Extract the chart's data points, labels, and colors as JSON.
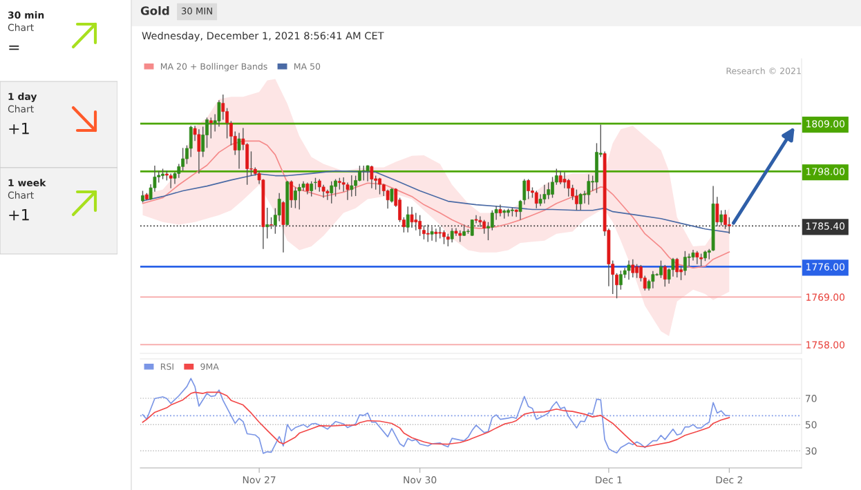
{
  "chart_data": [
    {
      "type": "candlestick",
      "title": "Gold",
      "subtitle": "Wednesday, December 1, 2021 8:56:41 AM CET",
      "annotations": [
        "30 MIN",
        "Research © 2021"
      ],
      "categories": [
        null,
        null,
        null,
        null,
        null,
        null,
        null,
        null,
        null,
        null,
        null,
        null,
        null,
        null,
        null,
        null,
        null,
        null,
        null,
        null,
        null,
        null,
        null,
        null,
        null,
        null,
        null,
        null,
        null,
        null,
        null,
        null,
        null,
        null,
        null,
        null,
        null,
        null,
        null,
        null,
        null,
        null,
        null,
        null,
        null,
        null,
        null,
        null,
        null,
        null,
        null,
        null,
        null,
        null,
        null,
        null,
        null,
        null,
        null,
        null,
        null,
        null,
        null,
        null,
        null,
        null,
        null,
        null,
        null,
        null,
        null,
        null,
        null,
        null,
        null,
        null,
        null,
        null,
        null,
        null,
        null,
        null,
        null,
        null,
        null,
        null,
        null,
        null,
        null,
        null,
        null,
        null,
        null,
        null,
        null,
        null,
        null,
        null,
        null,
        null,
        null,
        null,
        null,
        null,
        null,
        null,
        null,
        null,
        null,
        null,
        null,
        null,
        null,
        null,
        null,
        null,
        null,
        null,
        null,
        null,
        null,
        null,
        null,
        null,
        null,
        null,
        null,
        null,
        null,
        null,
        null,
        null,
        null,
        null,
        null,
        null,
        null,
        null,
        null,
        null,
        null,
        null,
        null,
        null,
        null,
        null,
        null
      ],
      "ohlc": [
        [
          1791.2,
          1793.5,
          1790.8,
          1792.4
        ],
        [
          1792.6,
          1793.0,
          1791.4,
          1791.6
        ],
        [
          1791.6,
          1795.0,
          1791.4,
          1794.2
        ],
        [
          1794.2,
          1799.3,
          1793.3,
          1796.7
        ],
        [
          1796.7,
          1798.1,
          1795.4,
          1797.1
        ],
        [
          1797.0,
          1798.6,
          1796.2,
          1797.4
        ],
        [
          1797.4,
          1798.2,
          1795.9,
          1797.1
        ],
        [
          1797.0,
          1797.5,
          1794.1,
          1796.4
        ],
        [
          1796.4,
          1797.8,
          1795.1,
          1797.5
        ],
        [
          1797.5,
          1799.7,
          1796.5,
          1799.1
        ],
        [
          1799.1,
          1803.4,
          1798.1,
          1800.9
        ],
        [
          1800.9,
          1804.0,
          1799.7,
          1803.3
        ],
        [
          1803.3,
          1808.5,
          1801.3,
          1808.2
        ],
        [
          1807.9,
          1808.5,
          1805.0,
          1806.5
        ],
        [
          1806.5,
          1807.7,
          1797.5,
          1802.6
        ],
        [
          1802.6,
          1808.3,
          1801.3,
          1806.4
        ],
        [
          1806.4,
          1810.4,
          1803.4,
          1809.9
        ],
        [
          1809.7,
          1810.4,
          1805.6,
          1809.2
        ],
        [
          1809.2,
          1811.2,
          1807.2,
          1809.7
        ],
        [
          1809.6,
          1814.4,
          1808.3,
          1813.9
        ],
        [
          1813.7,
          1815.7,
          1809.9,
          1811.8
        ],
        [
          1811.8,
          1812.6,
          1805.6,
          1809.2
        ],
        [
          1809.1,
          1809.6,
          1804.0,
          1806.1
        ],
        [
          1806.1,
          1807.2,
          1801.8,
          1802.9
        ],
        [
          1802.9,
          1806.9,
          1798.6,
          1805.5
        ],
        [
          1805.5,
          1808.0,
          1802.9,
          1804.2
        ],
        [
          1804.2,
          1804.5,
          1794.9,
          1798.6
        ],
        [
          1798.6,
          1802.6,
          1797.0,
          1798.5
        ],
        [
          1798.5,
          1798.9,
          1797.0,
          1797.5
        ],
        [
          1797.5,
          1798.1,
          1795.1,
          1796.0
        ],
        [
          1796.0,
          1796.2,
          1780.1,
          1785.2
        ],
        [
          1785.2,
          1789.6,
          1782.5,
          1785.7
        ],
        [
          1785.7,
          1787.4,
          1784.7,
          1785.6
        ],
        [
          1785.6,
          1789.5,
          1783.6,
          1787.9
        ],
        [
          1787.9,
          1793.0,
          1786.5,
          1791.6
        ],
        [
          1790.8,
          1791.1,
          1779.3,
          1785.7
        ],
        [
          1785.7,
          1795.8,
          1785.5,
          1795.6
        ],
        [
          1795.6,
          1795.9,
          1789.6,
          1791.4
        ],
        [
          1791.4,
          1794.3,
          1789.5,
          1793.5
        ],
        [
          1793.5,
          1795.1,
          1789.2,
          1794.3
        ],
        [
          1794.3,
          1795.7,
          1793.5,
          1795.1
        ],
        [
          1795.1,
          1795.4,
          1792.7,
          1793.5
        ],
        [
          1793.5,
          1795.7,
          1792.2,
          1795.1
        ],
        [
          1795.4,
          1796.5,
          1793.8,
          1795.5
        ],
        [
          1795.8,
          1796.2,
          1793.3,
          1794.4
        ],
        [
          1794.4,
          1794.9,
          1791.9,
          1793.4
        ],
        [
          1793.4,
          1793.8,
          1791.4,
          1793.0
        ],
        [
          1793.0,
          1795.7,
          1790.6,
          1794.7
        ],
        [
          1794.5,
          1796.2,
          1792.2,
          1795.8
        ],
        [
          1795.7,
          1796.5,
          1793.8,
          1795.4
        ],
        [
          1795.4,
          1796.6,
          1793.3,
          1795.0
        ],
        [
          1794.9,
          1795.4,
          1791.4,
          1793.8
        ],
        [
          1793.8,
          1797.1,
          1792.2,
          1794.7
        ],
        [
          1794.7,
          1797.0,
          1792.3,
          1795.9
        ],
        [
          1795.9,
          1799.3,
          1795.7,
          1798.1
        ],
        [
          1798.1,
          1799.3,
          1795.9,
          1798.2
        ],
        [
          1798.1,
          1799.4,
          1795.7,
          1799.3
        ],
        [
          1799.1,
          1799.3,
          1794.1,
          1796.2
        ],
        [
          1796.3,
          1797.0,
          1793.8,
          1795.9
        ],
        [
          1796.3,
          1796.5,
          1792.7,
          1795.0
        ],
        [
          1794.9,
          1795.1,
          1792.3,
          1793.5
        ],
        [
          1793.5,
          1793.8,
          1789.4,
          1791.4
        ],
        [
          1791.1,
          1794.1,
          1790.8,
          1793.9
        ],
        [
          1793.9,
          1794.1,
          1789.8,
          1790.1
        ],
        [
          1791.4,
          1791.9,
          1786.3,
          1786.8
        ],
        [
          1786.8,
          1787.4,
          1783.9,
          1785.2
        ],
        [
          1785.1,
          1789.9,
          1783.9,
          1788.0
        ],
        [
          1788.0,
          1789.8,
          1785.0,
          1786.3
        ],
        [
          1786.8,
          1788.4,
          1784.4,
          1786.3
        ],
        [
          1786.5,
          1787.9,
          1783.1,
          1784.7
        ],
        [
          1784.4,
          1785.5,
          1782.3,
          1783.6
        ],
        [
          1783.7,
          1785.7,
          1781.7,
          1783.5
        ],
        [
          1783.5,
          1785.2,
          1782.0,
          1784.1
        ],
        [
          1784.0,
          1784.8,
          1781.7,
          1783.6
        ],
        [
          1783.9,
          1785.2,
          1782.5,
          1783.7
        ],
        [
          1783.9,
          1784.4,
          1781.2,
          1782.9
        ],
        [
          1782.9,
          1783.6,
          1780.7,
          1782.3
        ],
        [
          1782.4,
          1784.9,
          1781.6,
          1784.2
        ],
        [
          1784.2,
          1784.9,
          1783.1,
          1783.7
        ],
        [
          1783.7,
          1784.4,
          1781.7,
          1783.2
        ],
        [
          1783.2,
          1785.7,
          1783.1,
          1784.1
        ],
        [
          1784.1,
          1784.7,
          1783.6,
          1784.2
        ],
        [
          1783.2,
          1786.9,
          1783.1,
          1786.8
        ],
        [
          1786.9,
          1787.9,
          1786.0,
          1786.7
        ],
        [
          1786.7,
          1787.6,
          1785.2,
          1786.3
        ],
        [
          1786.4,
          1786.8,
          1783.6,
          1784.9
        ],
        [
          1784.9,
          1786.3,
          1782.1,
          1785.3
        ],
        [
          1785.1,
          1789.0,
          1784.4,
          1788.4
        ],
        [
          1788.4,
          1790.0,
          1786.8,
          1789.2
        ],
        [
          1789.2,
          1790.3,
          1787.6,
          1788.4
        ],
        [
          1788.5,
          1789.2,
          1787.1,
          1788.9
        ],
        [
          1788.5,
          1789.4,
          1787.6,
          1789.0
        ],
        [
          1788.9,
          1789.6,
          1787.6,
          1789.1
        ],
        [
          1789.1,
          1789.2,
          1787.5,
          1788.7
        ],
        [
          1788.7,
          1791.4,
          1786.8,
          1791.1
        ],
        [
          1791.4,
          1796.2,
          1790.3,
          1795.8
        ],
        [
          1795.9,
          1796.2,
          1791.6,
          1793.5
        ],
        [
          1793.5,
          1794.3,
          1791.9,
          1793.1
        ],
        [
          1793.1,
          1793.5,
          1789.5,
          1790.6
        ],
        [
          1790.6,
          1792.7,
          1790.0,
          1791.6
        ],
        [
          1791.6,
          1794.9,
          1790.6,
          1792.7
        ],
        [
          1792.6,
          1795.4,
          1791.6,
          1793.8
        ],
        [
          1792.7,
          1796.7,
          1791.9,
          1795.5
        ],
        [
          1795.5,
          1798.6,
          1794.9,
          1797.0
        ],
        [
          1797.0,
          1798.1,
          1795.0,
          1795.5
        ],
        [
          1796.2,
          1797.8,
          1794.1,
          1795.5
        ],
        [
          1795.9,
          1796.2,
          1792.2,
          1794.1
        ],
        [
          1794.1,
          1794.9,
          1791.4,
          1792.3
        ],
        [
          1792.3,
          1793.8,
          1789.0,
          1790.5
        ],
        [
          1790.5,
          1793.0,
          1789.0,
          1792.7
        ],
        [
          1792.6,
          1793.5,
          1790.6,
          1792.8
        ],
        [
          1792.6,
          1797.3,
          1790.3,
          1795.7
        ],
        [
          1795.5,
          1797.0,
          1793.5,
          1795.7
        ],
        [
          1795.5,
          1804.5,
          1793.0,
          1802.4
        ],
        [
          1801.9,
          1808.8,
          1801.3,
          1802.2
        ],
        [
          1802.1,
          1802.6,
          1783.1,
          1784.2
        ],
        [
          1784.4,
          1784.8,
          1771.5,
          1776.6
        ],
        [
          1776.6,
          1777.4,
          1769.7,
          1774.2
        ],
        [
          1774.1,
          1774.5,
          1768.7,
          1771.8
        ],
        [
          1771.8,
          1775.1,
          1770.7,
          1774.2
        ],
        [
          1774.2,
          1775.7,
          1773.4,
          1775.1
        ],
        [
          1775.1,
          1777.4,
          1773.0,
          1776.4
        ],
        [
          1776.4,
          1777.7,
          1773.5,
          1774.6
        ],
        [
          1776.0,
          1776.6,
          1773.4,
          1774.6
        ],
        [
          1776.0,
          1776.4,
          1772.6,
          1773.4
        ],
        [
          1773.4,
          1773.9,
          1770.5,
          1771.0
        ],
        [
          1771.0,
          1773.0,
          1770.5,
          1772.6
        ],
        [
          1772.6,
          1775.0,
          1771.0,
          1774.2
        ],
        [
          1774.1,
          1774.5,
          1773.9,
          1774.2
        ],
        [
          1774.1,
          1777.4,
          1773.4,
          1776.0
        ],
        [
          1776.0,
          1776.4,
          1771.4,
          1773.1
        ],
        [
          1773.1,
          1775.6,
          1772.1,
          1775.3
        ],
        [
          1775.3,
          1778.0,
          1773.7,
          1777.7
        ],
        [
          1777.7,
          1778.0,
          1773.5,
          1774.8
        ],
        [
          1775.3,
          1776.1,
          1772.9,
          1774.8
        ],
        [
          1775.1,
          1779.6,
          1774.0,
          1778.2
        ],
        [
          1778.1,
          1779.0,
          1776.1,
          1778.3
        ],
        [
          1778.2,
          1779.9,
          1777.4,
          1779.2
        ],
        [
          1779.2,
          1779.6,
          1776.6,
          1778.2
        ],
        [
          1778.1,
          1779.0,
          1776.1,
          1777.8
        ],
        [
          1778.0,
          1779.7,
          1777.3,
          1779.4
        ],
        [
          1779.3,
          1780.1,
          1777.7,
          1779.7
        ],
        [
          1779.8,
          1794.6,
          1779.6,
          1790.5
        ],
        [
          1790.5,
          1792.1,
          1785.3,
          1786.3
        ],
        [
          1786.3,
          1789.0,
          1785.5,
          1788.0
        ],
        [
          1788.0,
          1789.1,
          1784.7,
          1785.7
        ],
        [
          1785.7,
          1787.4,
          1783.6,
          1785.4
        ]
      ],
      "series": [
        {
          "name": "MA 20 + Bollinger Bands",
          "type": "line",
          "color": "#f58a8a",
          "values": [
            1790.6,
            null,
            null,
            null,
            null,
            1791.9,
            null,
            null,
            null,
            1794.9,
            null,
            null,
            null,
            1797.5,
            null,
            null,
            1799.4,
            null,
            null,
            1802.4,
            null,
            null,
            1804.2,
            null,
            null,
            1805.0,
            null,
            null,
            null,
            1805.0,
            null,
            1804.0,
            null,
            1801.8,
            null,
            null,
            1795.4,
            null,
            null,
            1793.8,
            null,
            null,
            1793.0,
            null,
            null,
            1792.2,
            null,
            null,
            null,
            null,
            1793.2,
            null,
            null,
            1794.3,
            null,
            null,
            1795.3,
            null,
            null,
            null,
            1795.0,
            null,
            null,
            1793.8,
            null,
            null,
            null,
            1792.2,
            null,
            null,
            1790.3,
            null,
            null,
            null,
            1788.4,
            null,
            null,
            1786.8,
            null,
            null,
            null,
            1785.1,
            null,
            null,
            1784.8,
            null,
            null,
            null,
            1785.2,
            null,
            null,
            1785.9,
            null,
            null,
            1786.8,
            null,
            null,
            null,
            null,
            null,
            1789.0,
            null,
            null,
            1790.6,
            null,
            null,
            null,
            1792.1,
            null,
            null,
            1792.7,
            null,
            null,
            null,
            1794.4,
            1794.3,
            null,
            1792.7,
            null,
            1790.6,
            null,
            null,
            1787.4,
            null,
            null,
            1783.6,
            null,
            null,
            null,
            1780.4,
            null,
            1778.2,
            null,
            1776.6,
            null,
            null,
            null,
            1775.7,
            null,
            null,
            1776.1,
            null,
            1777.7,
            null,
            null,
            null,
            1779.4
          ],
          "upper": [
            1792.7,
            null,
            null,
            null,
            null,
            1793.8,
            null,
            null,
            null,
            1798.1,
            null,
            null,
            null,
            1808.3,
            null,
            null,
            1810.4,
            null,
            null,
            1814.7,
            null,
            null,
            1815.2,
            null,
            null,
            1815.2,
            null,
            null,
            null,
            1816.3,
            null,
            1819.0,
            null,
            1819.3,
            null,
            null,
            1813.6,
            null,
            null,
            1806.1,
            null,
            null,
            1801.3,
            null,
            null,
            1799.7,
            null,
            null,
            null,
            null,
            1798.1,
            null,
            null,
            1798.6,
            null,
            null,
            1798.9,
            null,
            null,
            null,
            1798.9,
            null,
            null,
            1800.2,
            null,
            null,
            null,
            1801.6,
            null,
            null,
            1801.7,
            null,
            null,
            null,
            1799.7,
            null,
            null,
            1794.9,
            null,
            null,
            null,
            1790.6,
            null,
            null,
            1788.4,
            null,
            null,
            null,
            1788.4,
            null,
            null,
            1789.0,
            null,
            null,
            1790.6,
            null,
            null,
            null,
            null,
            null,
            1794.9,
            null,
            null,
            1796.5,
            null,
            null,
            null,
            1797.5,
            null,
            null,
            1797.5,
            null,
            null,
            null,
            1798.1,
            1798.1,
            null,
            1804.5,
            null,
            1807.7,
            null,
            null,
            1808.5,
            null,
            null,
            1806.1,
            null,
            null,
            null,
            1802.9,
            null,
            1798.1,
            null,
            1787.4,
            null,
            null,
            null,
            1780.7,
            null,
            null,
            1780.9,
            null,
            1783.6,
            null,
            null,
            null,
            1789.5
          ],
          "lower": [
            1787.9,
            null,
            null,
            null,
            null,
            1786.3,
            null,
            null,
            null,
            1785.7,
            null,
            null,
            null,
            1786.3,
            null,
            null,
            1787.1,
            null,
            null,
            1787.9,
            null,
            null,
            1789.0,
            null,
            null,
            1791.4,
            null,
            null,
            null,
            1794.9,
            null,
            1791.6,
            null,
            1788.4,
            null,
            null,
            1782.0,
            null,
            null,
            1779.8,
            null,
            null,
            1780.7,
            null,
            null,
            1783.1,
            null,
            null,
            null,
            null,
            1788.4,
            null,
            null,
            1789.5,
            null,
            null,
            1791.6,
            null,
            null,
            null,
            1792.2,
            null,
            null,
            1792.7,
            null,
            null,
            null,
            1791.6,
            null,
            null,
            1789.0,
            null,
            null,
            null,
            1785.7,
            null,
            null,
            1782.5,
            null,
            null,
            null,
            1779.8,
            null,
            null,
            1779.3,
            null,
            null,
            null,
            1779.3,
            null,
            null,
            1779.8,
            null,
            null,
            1781.5,
            null,
            null,
            null,
            null,
            null,
            1782.0,
            null,
            null,
            1783.6,
            null,
            null,
            null,
            1784.1,
            null,
            null,
            1786.8,
            null,
            null,
            null,
            1789.0,
            1789.0,
            null,
            1786.3,
            null,
            1782.0,
            null,
            null,
            1775.0,
            null,
            null,
            1767.0,
            null,
            null,
            null,
            1761.1,
            null,
            1760.0,
            null,
            1768.0,
            null,
            null,
            null,
            1770.7,
            null,
            null,
            1769.7,
            null,
            1768.3,
            null,
            null,
            null,
            1770.2
          ]
        },
        {
          "name": "MA 50",
          "type": "line",
          "color": "#4a6aa5",
          "values": [
            1791.2,
            null,
            null,
            null,
            null,
            1792.2,
            null,
            null,
            null,
            null,
            1793.5,
            null,
            null,
            null,
            null,
            null,
            1794.6,
            null,
            null,
            null,
            null,
            null,
            1796.0,
            null,
            null,
            null,
            null,
            1797.0,
            null,
            1797.4,
            null,
            null,
            null,
            1797.0,
            null,
            null,
            1797.0,
            null,
            null,
            null,
            null,
            null,
            1797.5,
            null,
            null,
            null,
            null,
            null,
            1798.1,
            null,
            null,
            null,
            null,
            null,
            null,
            null,
            null,
            null,
            1797.8,
            null,
            null,
            null,
            null,
            1795.9,
            null,
            null,
            null,
            null,
            null,
            1793.5,
            null,
            null,
            null,
            null,
            null,
            null,
            1791.1,
            null,
            null,
            null,
            null,
            null,
            null,
            1790.3,
            null,
            null,
            null,
            null,
            null,
            null,
            1789.8,
            null,
            null,
            null,
            null,
            null,
            null,
            1789.2,
            null,
            null,
            null,
            null,
            1789.2,
            null,
            null,
            null,
            null,
            null,
            1789.0,
            null,
            null,
            null,
            1789.0,
            null,
            null,
            1789.5,
            null,
            1788.7,
            null,
            null,
            null,
            null,
            null,
            1787.9,
            null,
            null,
            null,
            null,
            null,
            1787.1,
            null,
            null,
            null,
            null,
            1786.0,
            null,
            null,
            null,
            null,
            null,
            1784.7,
            null,
            null,
            null,
            null,
            null,
            1783.9
          ]
        }
      ],
      "ref_lines": [
        {
          "axis": "y",
          "value": 1809,
          "color": "#4ca600"
        },
        {
          "axis": "y",
          "value": 1798,
          "color": "#4ca600"
        },
        {
          "axis": "y",
          "value": 1785.4,
          "color": "#333333",
          "line_style": "dotted"
        },
        {
          "axis": "y",
          "value": 1776,
          "color": "#2962e8"
        },
        {
          "axis": "y",
          "value": 1769,
          "color": "#f7a5a5"
        },
        {
          "axis": "y",
          "value": 1758,
          "color": "#f7a5a5"
        }
      ],
      "ylim": [
        1756,
        1824
      ],
      "yticks": [
        {
          "value": 1758,
          "label": "1758.00"
        },
        {
          "value": 1769,
          "label": "1769.00"
        },
        {
          "value": 1776,
          "label": "1776.00"
        },
        {
          "value": 1785.4,
          "label": "1785.40"
        },
        {
          "value": 1798,
          "label": "1798.00"
        },
        {
          "value": 1809,
          "label": "1809.00"
        }
      ],
      "tick_labels": "y",
      "legend": "top left"
    },
    {
      "type": "line",
      "categories": [
        null,
        null,
        null,
        null,
        null,
        null,
        null,
        null,
        null,
        null,
        null,
        null,
        null,
        null,
        null,
        null,
        null,
        null,
        null,
        null,
        null,
        null,
        null,
        null,
        null,
        null,
        null,
        null,
        null,
        "Nov 27",
        null,
        null,
        null,
        null,
        null,
        null,
        null,
        null,
        null,
        null,
        null,
        null,
        null,
        null,
        null,
        null,
        null,
        null,
        null,
        null,
        null,
        null,
        null,
        null,
        null,
        null,
        null,
        null,
        null,
        null,
        null,
        null,
        null,
        null,
        null,
        null,
        null,
        null,
        null,
        "Nov 30",
        null,
        null,
        null,
        null,
        null,
        null,
        null,
        null,
        null,
        null,
        null,
        null,
        null,
        null,
        null,
        null,
        null,
        null,
        null,
        null,
        null,
        null,
        null,
        null,
        null,
        null,
        null,
        null,
        null,
        null,
        null,
        null,
        null,
        null,
        null,
        null,
        null,
        null,
        null,
        null,
        null,
        null,
        null,
        null,
        null,
        null,
        "Dec 1",
        null,
        null,
        null,
        null,
        null,
        null,
        null,
        null,
        null,
        null,
        null,
        null,
        null,
        null,
        null,
        null,
        null,
        null,
        null,
        null,
        null,
        null,
        null,
        null,
        null,
        null,
        null,
        null,
        null,
        "Dec 2"
      ],
      "series": [
        {
          "name": "RSI",
          "color": "#7b96e6",
          "values": [
            57.5,
            54.0,
            null,
            69.8,
            null,
            71.1,
            69.8,
            66.1,
            null,
            71.9,
            null,
            78.9,
            85.1,
            78.9,
            64.0,
            null,
            73.7,
            71.4,
            71.9,
            76.3,
            68.4,
            null,
            null,
            50.9,
            54.7,
            52.3,
            43.0,
            null,
            42.1,
            39.5,
            28.1,
            29.3,
            28.9,
            null,
            40.9,
            33.7,
            50.0,
            45.3,
            47.7,
            null,
            50.0,
            47.9,
            50.4,
            50.9,
            null,
            48.2,
            46.5,
            null,
            52.3,
            null,
            50.5,
            47.7,
            null,
            50.5,
            57.4,
            57.0,
            58.8,
            51.8,
            51.8,
            null,
            null,
            40.7,
            47.0,
            null,
            35.4,
            33.3,
            39.5,
            37.7,
            38.6,
            35.1,
            null,
            33.7,
            35.4,
            null,
            36.0,
            34.2,
            33.0,
            39.5,
            null,
            38.2,
            37.7,
            40.4,
            45.6,
            49.5,
            null,
            43.9,
            44.7,
            55.3,
            57.4,
            54.0,
            null,
            54.9,
            55.6,
            54.7,
            null,
            71.4,
            63.7,
            62.3,
            53.9,
            null,
            57.0,
            58.8,
            64.0,
            67.4,
            62.1,
            63.2,
            56.1,
            null,
            47.4,
            52.6,
            52.3,
            58.8,
            57.9,
            69.3,
            68.8,
            38.6,
            31.6,
            29.8,
            28.4,
            32.5,
            34.2,
            36.0,
            34.7,
            36.8,
            35.1,
            32.5,
            35.1,
            37.7,
            37.7,
            41.8,
            38.6,
            null,
            46.5,
            42.1,
            43.0,
            48.2,
            48.2,
            50.0,
            47.4,
            47.4,
            50.0,
            51.8,
            66.7,
            58.8,
            60.5,
            57.0,
            56.7
          ]
        },
        {
          "name": "9MA",
          "color": "#f24848",
          "values": [
            51.8,
            54.0,
            null,
            59.3,
            null,
            null,
            62.8,
            64.9,
            null,
            null,
            68.8,
            null,
            73.7,
            74.6,
            null,
            73.7,
            74.6,
            null,
            null,
            74.6,
            null,
            71.9,
            68.4,
            null,
            null,
            64.9,
            null,
            58.8,
            null,
            51.8,
            null,
            45.6,
            null,
            39.5,
            36.5,
            35.4,
            null,
            null,
            40.4,
            43.5,
            null,
            null,
            46.8,
            null,
            49.1,
            null,
            null,
            48.9,
            null,
            null,
            49.5,
            null,
            null,
            49.6,
            51.4,
            null,
            53.0,
            null,
            null,
            52.6,
            null,
            null,
            50.9,
            null,
            47.4,
            43.5,
            null,
            40.0,
            null,
            null,
            36.8,
            null,
            35.4,
            null,
            null,
            null,
            35.1,
            null,
            null,
            36.3,
            null,
            38.2,
            39.5,
            null,
            null,
            43.0,
            44.2,
            null,
            47.4,
            null,
            50.4,
            null,
            51.8,
            53.0,
            null,
            57.9,
            null,
            59.3,
            null,
            null,
            59.6,
            null,
            null,
            61.8,
            null,
            60.5,
            null,
            60.0,
            null,
            null,
            57.9,
            null,
            55.8,
            null,
            57.0,
            null,
            null,
            50.9,
            null,
            null,
            42.1,
            null,
            null,
            33.7,
            null,
            33.0,
            null,
            34.2,
            null,
            null,
            null,
            36.5,
            null,
            38.6,
            null,
            41.8,
            null,
            null,
            44.7,
            null,
            null,
            47.9,
            50.9,
            null,
            53.5,
            null,
            55.3
          ]
        }
      ],
      "ref_lines": [
        {
          "axis": "y",
          "value": 56.7,
          "color": "#7b96e6",
          "line_style": "dotted"
        }
      ],
      "ylim": [
        17,
        100
      ],
      "yticks": [
        30,
        50,
        70
      ],
      "grid": "y",
      "legend": "top left"
    },
    {
      "type": "other",
      "annotations": [
        "30 min",
        "Chart",
        "=",
        "1 day",
        "Chart",
        "+1",
        "1 week",
        "Chart",
        "+1"
      ]
    }
  ]
}
